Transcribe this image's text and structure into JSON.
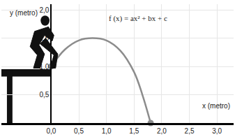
{
  "chart_data": {
    "type": "line",
    "annotation": "f (x) = ax² + bx + c",
    "x_label": "x (metro)",
    "y_label": "y (metro)",
    "x": [
      0,
      0.25,
      0.5,
      0.75,
      1.0,
      1.25,
      1.5,
      1.65,
      1.8
    ],
    "values": [
      1.0,
      1.3,
      1.46,
      1.5,
      1.46,
      1.28,
      0.9,
      0.5,
      0.0
    ],
    "color": "#8c8c8c",
    "line_style": "solid",
    "marker": "circle",
    "points": {
      "x": [
        0,
        1.8
      ],
      "y": [
        1.0,
        0.0
      ],
      "color": "#8c8c8c"
    },
    "xlim": [
      -0.9,
      3.3
    ],
    "ylim": [
      0,
      2.1
    ],
    "xticks": [
      {
        "value": 0,
        "label": "0,0"
      },
      {
        "value": 0.5,
        "label": "0,5"
      },
      {
        "value": 1,
        "label": "1,0"
      },
      {
        "value": 1.5,
        "label": "1,5"
      },
      {
        "value": 2,
        "label": "2,0"
      },
      {
        "value": 2.5,
        "label": "2,5"
      },
      {
        "value": 3,
        "label": "3,0"
      }
    ],
    "yticks": [
      {
        "value": 0.5,
        "label": "0,5"
      },
      {
        "value": 1,
        "label": "1,0"
      },
      {
        "value": 1.5,
        "label": "1,5"
      },
      {
        "value": 2,
        "label": "2,0"
      }
    ],
    "grid": true
  }
}
